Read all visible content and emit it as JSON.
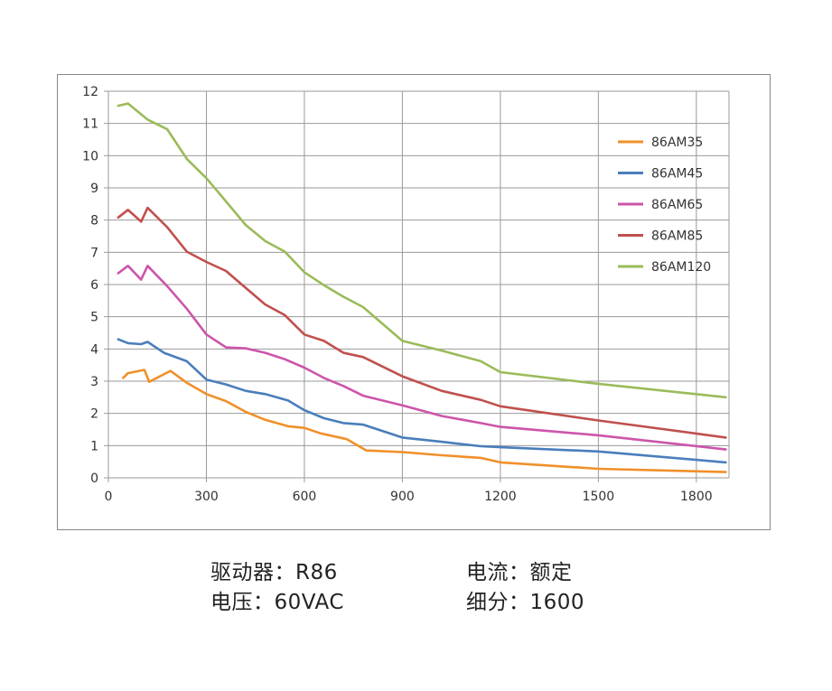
{
  "chart_data": {
    "type": "line",
    "xlim": [
      0,
      1900
    ],
    "ylim": [
      0,
      12
    ],
    "x_ticks": [
      0,
      300,
      600,
      900,
      1200,
      1500,
      1800
    ],
    "y_ticks": [
      0,
      1,
      2,
      3,
      4,
      5,
      6,
      7,
      8,
      9,
      10,
      11,
      12
    ],
    "grid": true,
    "legend_position": "right",
    "series": [
      {
        "name": "86AM35",
        "color": "#F0902A",
        "x": [
          45,
          60,
          110,
          125,
          190,
          240,
          300,
          360,
          420,
          480,
          550,
          600,
          650,
          730,
          790,
          900,
          1020,
          1140,
          1200,
          1500,
          1890
        ],
        "y": [
          3.1,
          3.25,
          3.35,
          2.98,
          3.32,
          2.95,
          2.6,
          2.38,
          2.05,
          1.8,
          1.6,
          1.55,
          1.38,
          1.2,
          0.85,
          0.8,
          0.7,
          0.62,
          0.48,
          0.28,
          0.18
        ]
      },
      {
        "name": "86AM45",
        "color": "#4A7EBB",
        "x": [
          30,
          60,
          100,
          120,
          170,
          240,
          300,
          360,
          420,
          480,
          550,
          600,
          660,
          720,
          780,
          900,
          1020,
          1140,
          1200,
          1500,
          1890
        ],
        "y": [
          4.3,
          4.18,
          4.15,
          4.22,
          3.88,
          3.62,
          3.05,
          2.9,
          2.7,
          2.6,
          2.4,
          2.1,
          1.85,
          1.7,
          1.65,
          1.25,
          1.12,
          0.98,
          0.95,
          0.82,
          0.48
        ]
      },
      {
        "name": "86AM65",
        "color": "#CC55AA",
        "x": [
          30,
          60,
          100,
          120,
          180,
          240,
          300,
          360,
          420,
          480,
          540,
          600,
          660,
          720,
          780,
          900,
          1020,
          1140,
          1200,
          1500,
          1890
        ],
        "y": [
          6.35,
          6.58,
          6.15,
          6.58,
          5.95,
          5.25,
          4.45,
          4.05,
          4.02,
          3.88,
          3.68,
          3.42,
          3.1,
          2.85,
          2.55,
          2.25,
          1.92,
          1.7,
          1.58,
          1.32,
          0.88
        ]
      },
      {
        "name": "86AM85",
        "color": "#C0504D",
        "x": [
          30,
          60,
          100,
          120,
          180,
          240,
          300,
          360,
          420,
          480,
          540,
          600,
          660,
          720,
          780,
          900,
          1020,
          1140,
          1200,
          1500,
          1890
        ],
        "y": [
          8.08,
          8.32,
          7.95,
          8.38,
          7.78,
          7.02,
          6.7,
          6.42,
          5.9,
          5.38,
          5.05,
          4.45,
          4.25,
          3.88,
          3.75,
          3.15,
          2.7,
          2.42,
          2.22,
          1.78,
          1.25
        ]
      },
      {
        "name": "86AM120",
        "color": "#9BBB59",
        "x": [
          30,
          60,
          120,
          180,
          240,
          300,
          360,
          420,
          480,
          540,
          600,
          660,
          720,
          780,
          900,
          1020,
          1140,
          1200,
          1500,
          1890
        ],
        "y": [
          11.55,
          11.62,
          11.12,
          10.82,
          9.9,
          9.3,
          8.58,
          7.85,
          7.35,
          7.02,
          6.38,
          5.98,
          5.62,
          5.3,
          4.25,
          3.95,
          3.62,
          3.28,
          2.92,
          2.5
        ]
      }
    ]
  },
  "info": {
    "driver": "驱动器：R86",
    "voltage": "电压：60VAC",
    "current": "电流：额定",
    "subdivision": "细分：1600"
  }
}
